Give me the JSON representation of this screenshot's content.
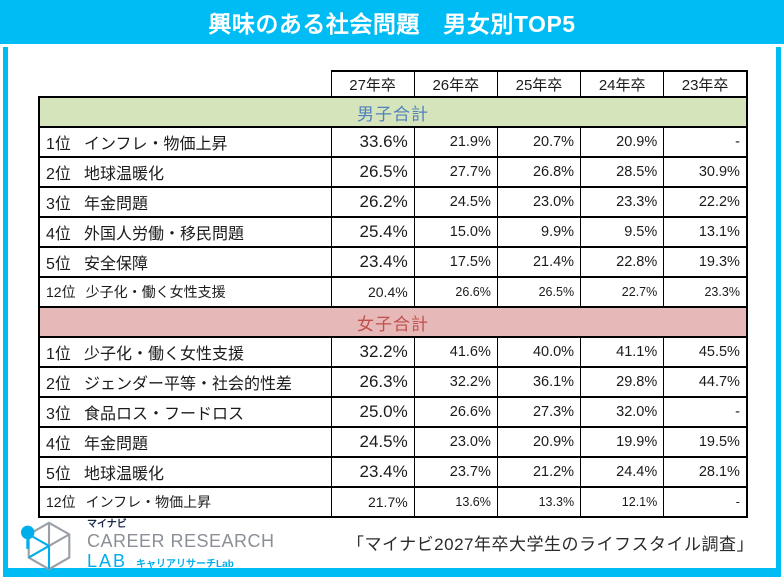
{
  "chart_data": {
    "type": "table",
    "title": "興味のある社会問題　男女別TOP5",
    "columns": [
      "27年卒",
      "26年卒",
      "25年卒",
      "24年卒",
      "23年卒"
    ],
    "sections": [
      {
        "header": "男子合計",
        "rows": [
          {
            "rank": "1位",
            "label": "インフレ・物価上昇",
            "values": [
              "33.6%",
              "21.9%",
              "20.7%",
              "20.9%",
              "-"
            ],
            "small": false
          },
          {
            "rank": "2位",
            "label": "地球温暖化",
            "values": [
              "26.5%",
              "27.7%",
              "26.8%",
              "28.5%",
              "30.9%"
            ],
            "small": false
          },
          {
            "rank": "3位",
            "label": "年金問題",
            "values": [
              "26.2%",
              "24.5%",
              "23.0%",
              "23.3%",
              "22.2%"
            ],
            "small": false
          },
          {
            "rank": "4位",
            "label": "外国人労働・移民問題",
            "values": [
              "25.4%",
              "15.0%",
              "9.9%",
              "9.5%",
              "13.1%"
            ],
            "small": false
          },
          {
            "rank": "5位",
            "label": "安全保障",
            "values": [
              "23.4%",
              "17.5%",
              "21.4%",
              "22.8%",
              "19.3%"
            ],
            "small": false
          },
          {
            "rank": "12位",
            "label": "少子化・働く女性支援",
            "values": [
              "20.4%",
              "26.6%",
              "26.5%",
              "22.7%",
              "23.3%"
            ],
            "small": true
          }
        ]
      },
      {
        "header": "女子合計",
        "rows": [
          {
            "rank": "1位",
            "label": "少子化・働く女性支援",
            "values": [
              "32.2%",
              "41.6%",
              "40.0%",
              "41.1%",
              "45.5%"
            ],
            "small": false
          },
          {
            "rank": "2位",
            "label": "ジェンダー平等・社会的性差",
            "values": [
              "26.3%",
              "32.2%",
              "36.1%",
              "29.8%",
              "44.7%"
            ],
            "small": false
          },
          {
            "rank": "3位",
            "label": "食品ロス・フードロス",
            "values": [
              "25.0%",
              "26.6%",
              "27.3%",
              "32.0%",
              "-"
            ],
            "small": false
          },
          {
            "rank": "4位",
            "label": "年金問題",
            "values": [
              "24.5%",
              "23.0%",
              "20.9%",
              "19.9%",
              "19.5%"
            ],
            "small": false
          },
          {
            "rank": "5位",
            "label": "地球温暖化",
            "values": [
              "23.4%",
              "23.7%",
              "21.2%",
              "24.4%",
              "28.1%"
            ],
            "small": false
          },
          {
            "rank": "12位",
            "label": "インフレ・物価上昇",
            "values": [
              "21.7%",
              "13.6%",
              "13.3%",
              "12.1%",
              "-"
            ],
            "small": true
          }
        ]
      }
    ]
  },
  "footer": {
    "logo": {
      "brand": "マイナビ",
      "line1": "CAREER RESEARCH",
      "line2": "LAB",
      "line2_sub": "キャリアリサーチLab"
    },
    "source": "「マイナビ2027年卒大学生のライフスタイル調査」"
  },
  "colors": {
    "accent_cyan": "#00BCF4",
    "logo_cyan": "#00AEEB",
    "male_band_bg": "#D6E4BC",
    "male_band_text": "#4F81BD",
    "female_band_bg": "#E6B8B7",
    "female_band_text": "#C0504D",
    "table_border": "#000000"
  }
}
